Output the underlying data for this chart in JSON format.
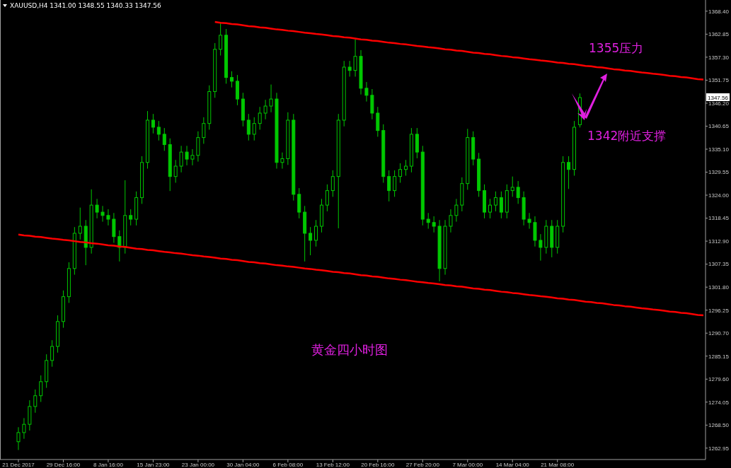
{
  "chart_data": {
    "type": "candlestick",
    "title": "XAUUSD,H4  1341.00 1348.55 1340.33 1347.56",
    "annotations": [
      {
        "text": "1355压力",
        "y": 1355
      },
      "1342附近支撑",
      "黄金四小时图",
      "1347.56"
    ],
    "categories": [
      "21 Dec 2017",
      null,
      null,
      null,
      null,
      null,
      null,
      null,
      "29 Dec 16:00",
      null,
      null,
      null,
      null,
      null,
      null,
      null,
      "8 Jan 16:00",
      null,
      null,
      null,
      null,
      null,
      null,
      null,
      "15 Jan 23:00",
      null,
      null,
      null,
      null,
      null,
      null,
      null,
      "23 Jan 00:00",
      null,
      null,
      null,
      null,
      null,
      null,
      null,
      "30 Jan 04:00",
      null,
      null,
      null,
      null,
      null,
      null,
      null,
      "6 Feb 08:00",
      null,
      null,
      null,
      null,
      null,
      null,
      null,
      "13 Feb 12:00",
      null,
      null,
      null,
      null,
      null,
      null,
      null,
      "20 Feb 16:00",
      null,
      null,
      null,
      null,
      null,
      null,
      null,
      "27 Feb 20:00",
      null,
      null,
      null,
      null,
      null,
      null,
      null,
      "7 Mar 00:00",
      null,
      null,
      null,
      null,
      null,
      null,
      null,
      "14 Mar 04:00",
      null,
      null,
      null,
      null,
      null,
      null,
      null,
      "21 Mar 08:00",
      null,
      null,
      null,
      null,
      null,
      null,
      null,
      null,
      null,
      null,
      null,
      null,
      null,
      null,
      null,
      null,
      null,
      null,
      null,
      null,
      null,
      null,
      null,
      null,
      null,
      null
    ],
    "ylim": [
      1260.2,
      1371.1
    ],
    "yticks": [
      1262.95,
      {
        "value": 1268.5,
        "label": "1268.50"
      },
      1274.05,
      {
        "value": 1279.6,
        "label": "1279.60"
      },
      1285.15,
      {
        "value": 1290.7,
        "label": "1290.70"
      },
      1296.25,
      {
        "value": 1301.8,
        "label": "1301.80"
      },
      1307.35,
      {
        "value": 1312.9,
        "label": "1312.90"
      },
      1318.45,
      {
        "value": 1324.0,
        "label": "1324.00"
      },
      1329.55,
      {
        "value": 1335.1,
        "label": "1335.10"
      },
      1340.65,
      {
        "value": 1346.2,
        "label": "1346.20"
      },
      1351.75,
      {
        "value": 1357.3,
        "label": "1357.30"
      },
      1362.85,
      {
        "value": 1368.4,
        "label": "1368.40"
      }
    ],
    "series": [
      {
        "color": "#00c800",
        "ohlc": [
          [
            1264.5,
            1268.0,
            1262.5,
            1266.7
          ],
          [
            1266.7,
            1270.2,
            1265.2,
            1268.7
          ],
          [
            1268.7,
            1274.5,
            1267.2,
            1273.0
          ],
          [
            1273.0,
            1277.1,
            1271.5,
            1275.6
          ],
          [
            1275.6,
            1280.5,
            1274.1,
            1279.0
          ],
          [
            1279.0,
            1285.6,
            1277.5,
            1284.1
          ],
          [
            1284.1,
            1289.0,
            1282.6,
            1287.5
          ],
          [
            1287.5,
            1295.0,
            1286.0,
            1293.5
          ],
          [
            1293.5,
            1301.0,
            1292.0,
            1299.5
          ],
          [
            1299.5,
            1307.8,
            1298.0,
            1306.3
          ],
          [
            1306.3,
            1316.3,
            1304.8,
            1314.8
          ],
          [
            1314.8,
            1321.0,
            1313.3,
            1316.5
          ],
          [
            1316.5,
            1318.0,
            1307.1,
            1311.4
          ],
          [
            1311.4,
            1325.4,
            1309.9,
            1321.6
          ],
          [
            1321.6,
            1323.1,
            1318.4,
            1319.9
          ],
          [
            1319.9,
            1321.4,
            1317.6,
            1319.1
          ],
          [
            1319.1,
            1320.6,
            1316.7,
            1318.2
          ],
          [
            1318.2,
            1319.7,
            1312.5,
            1314.0
          ],
          [
            1314.0,
            1315.5,
            1308.0,
            1311.4
          ],
          [
            1311.4,
            1327.6,
            1309.9,
            1319.1
          ],
          [
            1319.1,
            1320.6,
            1316.7,
            1318.2
          ],
          [
            1318.2,
            1324.9,
            1316.7,
            1323.4
          ],
          [
            1323.4,
            1333.4,
            1321.9,
            1331.9
          ],
          [
            1331.9,
            1344.3,
            1330.4,
            1342.1
          ],
          [
            1342.1,
            1343.6,
            1338.9,
            1340.4
          ],
          [
            1340.4,
            1341.9,
            1337.2,
            1338.7
          ],
          [
            1338.7,
            1340.2,
            1334.7,
            1336.2
          ],
          [
            1336.2,
            1337.7,
            1325.0,
            1328.5
          ],
          [
            1328.5,
            1332.5,
            1327.0,
            1331.0
          ],
          [
            1331.0,
            1335.9,
            1329.5,
            1334.4
          ],
          [
            1334.4,
            1335.9,
            1331.2,
            1332.7
          ],
          [
            1332.7,
            1335.1,
            1331.2,
            1333.6
          ],
          [
            1333.6,
            1339.4,
            1332.1,
            1337.9
          ],
          [
            1337.9,
            1342.8,
            1336.4,
            1341.3
          ],
          [
            1341.3,
            1350.5,
            1339.8,
            1349.0
          ],
          [
            1349.0,
            1360.7,
            1347.5,
            1359.2
          ],
          [
            1359.2,
            1365.5,
            1357.7,
            1362.6
          ],
          [
            1362.6,
            1364.1,
            1350.9,
            1352.4
          ],
          [
            1352.4,
            1353.9,
            1350.0,
            1351.5
          ],
          [
            1351.5,
            1353.0,
            1345.7,
            1347.2
          ],
          [
            1347.2,
            1348.7,
            1340.6,
            1342.1
          ],
          [
            1342.1,
            1343.6,
            1337.2,
            1338.7
          ],
          [
            1338.7,
            1342.8,
            1337.2,
            1341.3
          ],
          [
            1341.3,
            1345.3,
            1339.8,
            1343.8
          ],
          [
            1343.8,
            1347.0,
            1342.3,
            1345.5
          ],
          [
            1345.5,
            1350.7,
            1344.0,
            1347.2
          ],
          [
            1347.2,
            1348.7,
            1330.4,
            1331.9
          ],
          [
            1331.9,
            1334.3,
            1330.4,
            1332.8
          ],
          [
            1332.8,
            1344.0,
            1331.3,
            1342.1
          ],
          [
            1342.1,
            1343.6,
            1322.7,
            1324.2
          ],
          [
            1324.2,
            1325.7,
            1318.4,
            1319.9
          ],
          [
            1319.9,
            1321.4,
            1308.0,
            1314.8
          ],
          [
            1314.8,
            1316.3,
            1309.5,
            1313.1
          ],
          [
            1313.1,
            1318.0,
            1311.6,
            1316.5
          ],
          [
            1316.5,
            1323.1,
            1315.0,
            1321.6
          ],
          [
            1321.6,
            1326.6,
            1320.1,
            1325.1
          ],
          [
            1325.1,
            1330.0,
            1323.6,
            1328.5
          ],
          [
            1328.5,
            1343.6,
            1316.0,
            1342.1
          ],
          [
            1342.1,
            1356.4,
            1340.6,
            1354.9
          ],
          [
            1354.9,
            1356.4,
            1352.6,
            1354.1
          ],
          [
            1354.1,
            1361.6,
            1352.6,
            1357.5
          ],
          [
            1357.5,
            1359.0,
            1348.3,
            1349.8
          ],
          [
            1349.8,
            1351.3,
            1346.6,
            1348.1
          ],
          [
            1348.1,
            1349.6,
            1342.3,
            1343.8
          ],
          [
            1343.8,
            1345.3,
            1338.1,
            1339.6
          ],
          [
            1339.6,
            1341.1,
            1327.0,
            1328.5
          ],
          [
            1328.5,
            1330.0,
            1322.5,
            1325.1
          ],
          [
            1325.1,
            1330.0,
            1323.6,
            1328.5
          ],
          [
            1328.5,
            1331.7,
            1327.0,
            1330.2
          ],
          [
            1330.2,
            1332.5,
            1328.7,
            1331.0
          ],
          [
            1331.0,
            1340.2,
            1329.5,
            1338.7
          ],
          [
            1338.7,
            1340.2,
            1332.9,
            1334.4
          ],
          [
            1334.4,
            1335.9,
            1316.7,
            1318.2
          ],
          [
            1318.2,
            1319.7,
            1315.9,
            1317.4
          ],
          [
            1317.4,
            1318.9,
            1315.0,
            1316.5
          ],
          [
            1316.5,
            1318.0,
            1303.2,
            1306.3
          ],
          [
            1306.3,
            1318.0,
            1304.8,
            1316.5
          ],
          [
            1316.5,
            1320.6,
            1315.0,
            1319.1
          ],
          [
            1319.1,
            1323.1,
            1317.6,
            1321.6
          ],
          [
            1321.6,
            1328.3,
            1320.1,
            1326.8
          ],
          [
            1326.8,
            1340.0,
            1325.3,
            1337.9
          ],
          [
            1337.9,
            1339.4,
            1331.2,
            1332.7
          ],
          [
            1332.7,
            1334.2,
            1323.6,
            1325.1
          ],
          [
            1325.1,
            1326.6,
            1318.4,
            1319.9
          ],
          [
            1319.9,
            1323.1,
            1318.4,
            1321.6
          ],
          [
            1321.6,
            1324.9,
            1320.1,
            1323.4
          ],
          [
            1323.4,
            1324.9,
            1318.4,
            1319.9
          ],
          [
            1319.9,
            1326.6,
            1318.4,
            1325.1
          ],
          [
            1325.1,
            1328.5,
            1323.6,
            1325.9
          ],
          [
            1325.9,
            1327.4,
            1321.9,
            1323.4
          ],
          [
            1323.4,
            1324.9,
            1316.7,
            1318.2
          ],
          [
            1318.2,
            1319.7,
            1315.9,
            1317.4
          ],
          [
            1317.4,
            1318.9,
            1311.6,
            1313.1
          ],
          [
            1313.1,
            1314.6,
            1308.2,
            1311.4
          ],
          [
            1311.4,
            1318.0,
            1309.9,
            1316.5
          ],
          [
            1316.5,
            1318.0,
            1309.0,
            1311.4
          ],
          [
            1311.4,
            1318.0,
            1309.9,
            1316.5
          ],
          [
            1316.5,
            1333.4,
            1315.0,
            1331.9
          ],
          [
            1331.9,
            1333.4,
            1325.5,
            1330.2
          ],
          [
            1330.2,
            1341.9,
            1328.7,
            1340.4
          ],
          [
            1341.0,
            1348.55,
            1340.33,
            1347.56
          ],
          null,
          null,
          null,
          null,
          null,
          null,
          null,
          null,
          null,
          null,
          null,
          null,
          null,
          null,
          null,
          null,
          null,
          null,
          null,
          null,
          null,
          null
        ]
      },
      {
        "type": "line",
        "color": "#ff0000",
        "values": [
          null,
          null,
          null,
          null,
          null,
          null,
          null,
          null,
          null,
          null,
          null,
          null,
          null,
          null,
          null,
          null,
          null,
          null,
          null,
          null,
          null,
          null,
          null,
          null,
          null,
          null,
          null,
          null,
          null,
          null,
          null,
          null,
          null,
          null,
          null,
          1365.8,
          1365.6,
          1365.5,
          1365.3,
          1365.2,
          1365.0,
          1364.8,
          1364.7,
          1364.5,
          1364.4,
          1364.2,
          1364.0,
          1363.9,
          1363.7,
          1363.6,
          1363.4,
          1363.2,
          1363.1,
          1362.9,
          1362.8,
          1362.6,
          1362.4,
          1362.3,
          1362.1,
          1362.0,
          1361.8,
          1361.6,
          1361.5,
          1361.3,
          1361.2,
          1361.0,
          1360.8,
          1360.7,
          1360.5,
          1360.4,
          1360.2,
          1360.0,
          1359.9,
          1359.7,
          1359.6,
          1359.4,
          1359.2,
          1359.1,
          1358.9,
          1358.8,
          1358.6,
          1358.4,
          1358.3,
          1358.1,
          1358.0,
          1357.8,
          1357.6,
          1357.5,
          1357.3,
          1357.2,
          1357.0,
          1356.8,
          1356.7,
          1356.5,
          1356.4,
          1356.2,
          1356.0,
          1355.9,
          1355.7,
          1355.6,
          1355.4,
          1355.2,
          1355.1,
          1354.9,
          1354.8,
          1354.6,
          1354.4,
          1354.3,
          1354.1,
          1354.0,
          1353.8,
          1353.6,
          1353.5,
          1353.3,
          1353.2,
          1353.0,
          1352.8,
          1352.7,
          1352.5,
          1352.4,
          1352.2,
          1352.0,
          1351.9
        ]
      },
      {
        "type": "line",
        "color": "#ff0000",
        "values": [
          1314.5,
          1314.3,
          1314.2,
          1314.0,
          1313.9,
          1313.7,
          1313.5,
          1313.4,
          1313.2,
          1313.1,
          1312.9,
          1312.7,
          1312.6,
          1312.4,
          1312.3,
          1312.1,
          1311.9,
          1311.8,
          1311.6,
          1311.5,
          1311.3,
          1311.1,
          1311.0,
          1310.8,
          1310.7,
          1310.5,
          1310.3,
          1310.2,
          1310.0,
          1309.9,
          1309.7,
          1309.5,
          1309.4,
          1309.2,
          1309.1,
          1308.9,
          1308.7,
          1308.6,
          1308.4,
          1308.3,
          1308.1,
          1307.9,
          1307.8,
          1307.6,
          1307.5,
          1307.3,
          1307.1,
          1307.0,
          1306.8,
          1306.7,
          1306.5,
          1306.3,
          1306.2,
          1306.0,
          1305.9,
          1305.7,
          1305.5,
          1305.4,
          1305.2,
          1305.1,
          1304.9,
          1304.7,
          1304.6,
          1304.4,
          1304.3,
          1304.1,
          1303.9,
          1303.8,
          1303.6,
          1303.5,
          1303.3,
          1303.1,
          1303.0,
          1302.8,
          1302.7,
          1302.5,
          1302.3,
          1302.2,
          1302.0,
          1301.9,
          1301.7,
          1301.5,
          1301.4,
          1301.2,
          1301.1,
          1300.9,
          1300.7,
          1300.6,
          1300.4,
          1300.3,
          1300.1,
          1299.9,
          1299.8,
          1299.6,
          1299.5,
          1299.3,
          1299.1,
          1299.0,
          1298.8,
          1298.7,
          1298.5,
          1298.3,
          1298.2,
          1298.0,
          1297.9,
          1297.7,
          1297.5,
          1297.4,
          1297.2,
          1297.1,
          1296.9,
          1296.7,
          1296.6,
          1296.4,
          1296.3,
          1296.1,
          1295.9,
          1295.8,
          1295.6,
          1295.5,
          1295.3,
          1295.1,
          1295.0
        ]
      }
    ]
  }
}
